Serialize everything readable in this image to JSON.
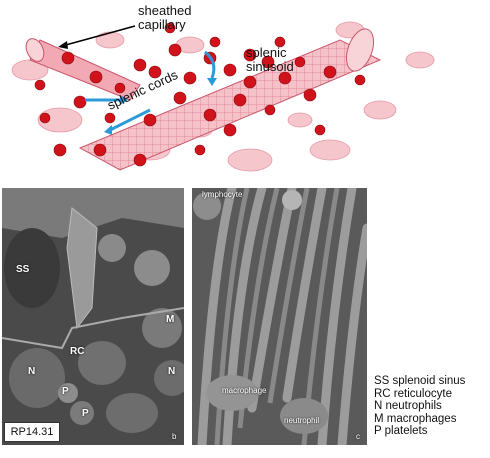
{
  "labels": {
    "sheathed_capillary": [
      "sheathed",
      "capillary"
    ],
    "splenic_sinusoid": [
      "splenic",
      "sinusoid"
    ],
    "splenic_cords": "splenic cords"
  },
  "panel_b": {
    "labels": {
      "ss": "SS",
      "rc": "RC",
      "n1": "N",
      "n2": "N",
      "m": "M",
      "p1": "P",
      "p2": "P",
      "letter": "b"
    }
  },
  "panel_c": {
    "labels": {
      "lymphocyte": "lymphocyte",
      "macrophage": "macrophage",
      "neutrophil": "neutrophil",
      "letter": "c"
    }
  },
  "figure_id": "RP14.31",
  "legend": [
    "SS splenoid sinus",
    "RC reticulocyte",
    "N neutrophils",
    "M macrophages",
    "P platelets"
  ],
  "colors": {
    "rbc": "#d0121b",
    "tissue_pink": "#f2b8bf",
    "arrow_blue": "#2a9ad8"
  }
}
